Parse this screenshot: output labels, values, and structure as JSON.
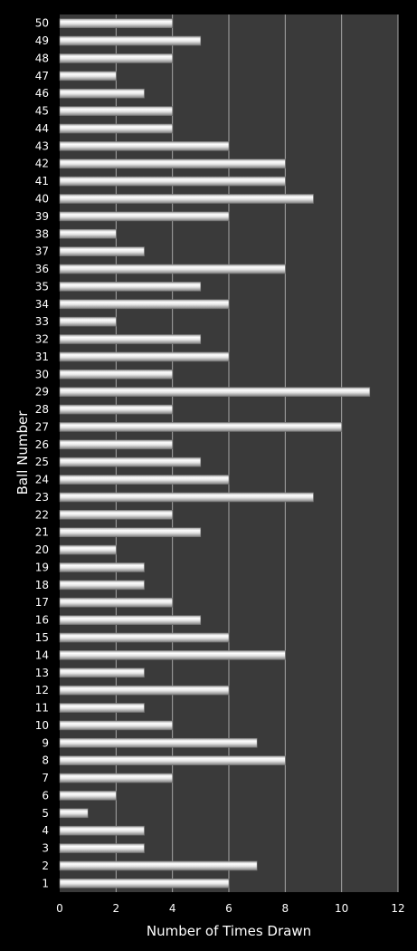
{
  "chart_data": {
    "type": "bar",
    "orientation": "horizontal",
    "xlabel": "Number of Times Drawn",
    "ylabel": "Ball Number",
    "xlim": [
      0,
      12
    ],
    "x_ticks": [
      "0",
      "2",
      "4",
      "6",
      "8",
      "10",
      "12"
    ],
    "grid": "vertical",
    "legend": "none",
    "categories": [
      "1",
      "2",
      "3",
      "4",
      "5",
      "6",
      "7",
      "8",
      "9",
      "10",
      "11",
      "12",
      "13",
      "14",
      "15",
      "16",
      "17",
      "18",
      "19",
      "20",
      "21",
      "22",
      "23",
      "24",
      "25",
      "26",
      "27",
      "28",
      "29",
      "30",
      "31",
      "32",
      "33",
      "34",
      "35",
      "36",
      "37",
      "38",
      "39",
      "40",
      "41",
      "42",
      "43",
      "44",
      "45",
      "46",
      "47",
      "48",
      "49",
      "50"
    ],
    "values": [
      6,
      7,
      3,
      3,
      1,
      2,
      4,
      8,
      7,
      4,
      3,
      6,
      3,
      8,
      6,
      5,
      4,
      3,
      3,
      2,
      5,
      4,
      9,
      6,
      5,
      4,
      10,
      4,
      11,
      4,
      6,
      5,
      2,
      6,
      5,
      8,
      3,
      2,
      6,
      9,
      8,
      8,
      6,
      4,
      4,
      3,
      2,
      4,
      5,
      4
    ],
    "colors": {
      "background": "#000000",
      "plot_area": "#3a3a3a",
      "gridline": "#a6a6a6",
      "bar_light": "#ffffff",
      "bar_dark": "#8c8c8c",
      "text": "#ffffff"
    }
  }
}
